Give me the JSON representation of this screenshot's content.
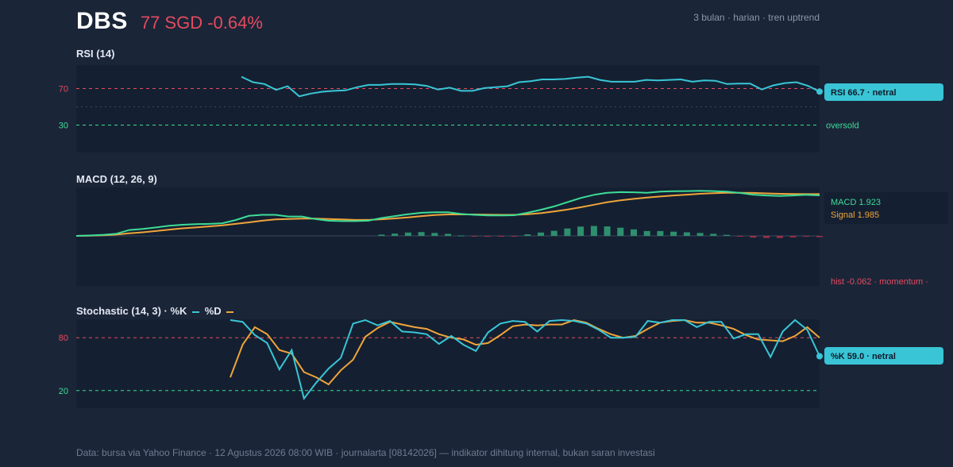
{
  "header": {
    "ticker": "DBS",
    "price_change": "77 SGD -0.64%",
    "meta": "3 bulan · harian · tren uptrend"
  },
  "colors": {
    "background": "#1b2538",
    "panel": "#142031",
    "cyan": "#39c5d6",
    "orange": "#f0a43a",
    "green": "#3ddc97",
    "red": "#e64a5f",
    "hist_pos": "#2e8f6e",
    "hist_neg": "#9b2f48"
  },
  "chart_data": [
    {
      "type": "line",
      "title": "RSI (14)",
      "ylim": [
        0,
        100
      ],
      "y_ticks": [
        "70",
        "30"
      ],
      "levels": [
        70,
        50,
        30
      ],
      "series": [
        {
          "name": "RSI",
          "values": [
            83.0,
            77.0,
            75.0,
            68.5,
            72.5,
            61.5,
            64.5,
            66.5,
            67.5,
            68.0,
            71.5,
            74.0,
            74.0,
            75.0,
            75.0,
            74.5,
            73.0,
            69.0,
            71.0,
            67.5,
            67.5,
            70.5,
            71.5,
            72.5,
            77.0,
            78.0,
            80.0,
            80.0,
            80.5,
            82.0,
            83.0,
            79.5,
            77.5,
            77.5,
            77.5,
            79.5,
            79.0,
            79.5,
            80.0,
            77.5,
            79.0,
            78.5,
            75.0,
            75.5,
            75.5,
            69.0,
            73.5,
            76.0,
            77.0,
            73.0,
            66.7
          ]
        }
      ],
      "tag": "RSI 66.7 · netral",
      "side_label": "oversold"
    },
    {
      "type": "line",
      "title": "MACD (12, 26, 9)",
      "ylim": [
        -3.0,
        2.2
      ],
      "legend": [
        "MACD 1.923",
        "Signal 1.985"
      ],
      "hist_label": "hist -0.062 · momentum ·",
      "series": [
        {
          "name": "MACD",
          "values": [
            0.0,
            0.02,
            0.05,
            0.1,
            0.28,
            0.33,
            0.4,
            0.48,
            0.53,
            0.56,
            0.57,
            0.6,
            0.75,
            0.95,
            1.0,
            1.0,
            0.92,
            0.92,
            0.8,
            0.72,
            0.7,
            0.7,
            0.72,
            0.85,
            0.94,
            1.03,
            1.1,
            1.12,
            1.12,
            1.04,
            1.0,
            0.97,
            0.97,
            0.98,
            1.1,
            1.24,
            1.4,
            1.6,
            1.8,
            1.95,
            2.05,
            2.08,
            2.07,
            2.05,
            2.1,
            2.12,
            2.13,
            2.14,
            2.13,
            2.1,
            2.04,
            1.96,
            1.92,
            1.9,
            1.92,
            1.95,
            1.923
          ]
        },
        {
          "name": "Signal",
          "values": [
            0.0,
            0.01,
            0.03,
            0.06,
            0.12,
            0.17,
            0.23,
            0.3,
            0.36,
            0.4,
            0.45,
            0.5,
            0.57,
            0.64,
            0.72,
            0.78,
            0.8,
            0.82,
            0.82,
            0.8,
            0.78,
            0.76,
            0.76,
            0.79,
            0.83,
            0.88,
            0.94,
            0.99,
            1.02,
            1.02,
            1.02,
            1.01,
            1.0,
            1.0,
            1.03,
            1.08,
            1.16,
            1.25,
            1.36,
            1.48,
            1.6,
            1.69,
            1.76,
            1.82,
            1.87,
            1.92,
            1.96,
            2.0,
            2.03,
            2.05,
            2.05,
            2.04,
            2.02,
            2.0,
            1.99,
            1.985,
            1.985
          ]
        },
        {
          "name": "hist",
          "values": [
            0,
            0,
            0,
            0,
            0,
            0,
            0,
            0,
            0,
            0,
            0,
            0,
            0,
            0,
            0,
            0,
            0,
            0,
            0,
            0,
            0,
            0,
            0,
            0.06,
            0.11,
            0.16,
            0.18,
            0.14,
            0.1,
            0.02,
            -0.02,
            -0.04,
            -0.03,
            -0.02,
            0.07,
            0.16,
            0.24,
            0.35,
            0.44,
            0.47,
            0.45,
            0.39,
            0.31,
            0.23,
            0.23,
            0.2,
            0.17,
            0.14,
            0.1,
            0.05,
            -0.01,
            -0.08,
            -0.1,
            -0.1,
            -0.07,
            -0.04,
            -0.062
          ]
        }
      ]
    },
    {
      "type": "line",
      "title": "Stochastic (14, 3) · %K",
      "legend_d": "%D",
      "ylim": [
        0,
        100
      ],
      "y_ticks": [
        "80",
        "20"
      ],
      "levels": [
        80,
        20
      ],
      "series": [
        {
          "name": "%K",
          "values": [
            100,
            98,
            83,
            74,
            44,
            66,
            11,
            29,
            45,
            57,
            96,
            100,
            94,
            99,
            87,
            86,
            84,
            73,
            82,
            72,
            65,
            86,
            96,
            99,
            98,
            87,
            99,
            100,
            99,
            96,
            89,
            80,
            80,
            81,
            99,
            97,
            100,
            100,
            92,
            98,
            98,
            79,
            84,
            84,
            58,
            87,
            100,
            89,
            59.0
          ]
        },
        {
          "name": "%D",
          "values": [
            35,
            72,
            92,
            84,
            66,
            62,
            41,
            35,
            27,
            43,
            55,
            81,
            91,
            98,
            95,
            92,
            90,
            84,
            80,
            78,
            72,
            74,
            83,
            93,
            95,
            94,
            95,
            95,
            100,
            97,
            90,
            84,
            80,
            82,
            90,
            97,
            99,
            100,
            97,
            97,
            94,
            90,
            83,
            78,
            77,
            76,
            82,
            92,
            80
          ]
        }
      ],
      "tag": "%K 59.0 · netral"
    }
  ],
  "footer": "Data: bursa via Yahoo Finance · 12 Agustus 2026 08:00 WIB · journalarta [08142026] — indikator dihitung internal, bukan saran investasi"
}
